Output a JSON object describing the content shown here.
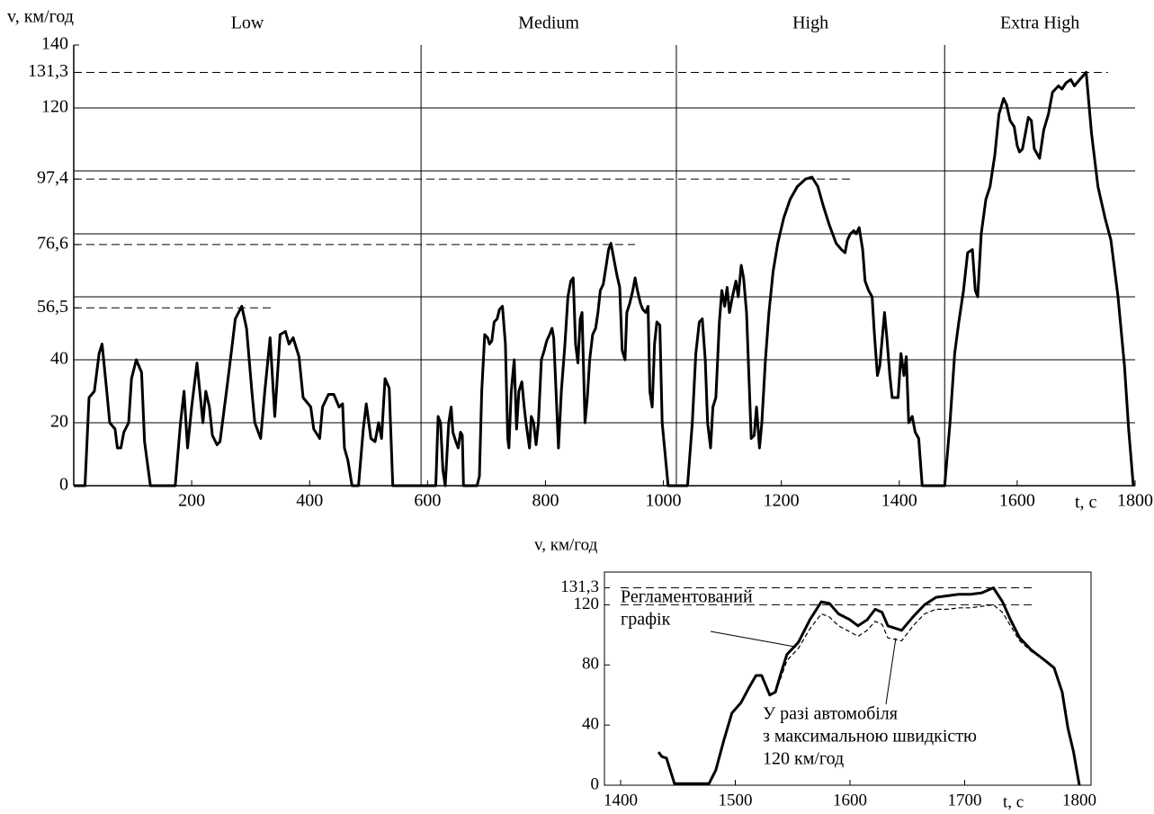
{
  "chart_data": [
    {
      "type": "line",
      "y_label": "v, км/год",
      "x_label": "t, c",
      "phases": [
        {
          "name": "Low",
          "start": 0,
          "end": 589
        },
        {
          "name": "Medium",
          "start": 589,
          "end": 1022
        },
        {
          "name": "High",
          "start": 1022,
          "end": 1477
        },
        {
          "name": "Extra High",
          "start": 1477,
          "end": 1800
        }
      ],
      "ref_lines": [
        {
          "value": 56.5,
          "to": 339
        },
        {
          "value": 76.6,
          "to": 952
        },
        {
          "value": 97.4,
          "to": 1318
        },
        {
          "value": 131.3,
          "to": 1754
        }
      ],
      "xlim": [
        0,
        1800
      ],
      "xticks": [
        200,
        400,
        600,
        800,
        1000,
        1200,
        1400,
        1600,
        1800
      ],
      "ylim": [
        0,
        140
      ],
      "yticks": [
        0,
        20,
        40,
        {
          "value": 56.5,
          "label": "56,5"
        },
        {
          "value": 76.6,
          "label": "76,6"
        },
        {
          "value": 97.4,
          "label": "97,4"
        },
        120,
        {
          "value": 131.3,
          "label": "131,3"
        },
        140
      ],
      "grid_y": [
        20,
        40,
        60,
        80,
        100,
        120
      ],
      "x": [
        0,
        19,
        26,
        35,
        43,
        48,
        56,
        61,
        70,
        74,
        80,
        85,
        93,
        98,
        106,
        115,
        120,
        130,
        172,
        181,
        187,
        193,
        200,
        209,
        219,
        224,
        230,
        235,
        243,
        248,
        259,
        267,
        274,
        285,
        293,
        302,
        307,
        317,
        324,
        333,
        341,
        350,
        359,
        365,
        372,
        382,
        389,
        402,
        407,
        417,
        422,
        432,
        441,
        450,
        456,
        459,
        465,
        472,
        483,
        491,
        496,
        504,
        511,
        517,
        522,
        528,
        535,
        541,
        589,
        608,
        614,
        618,
        622,
        626,
        630,
        636,
        640,
        643,
        648,
        652,
        656,
        659,
        661,
        684,
        688,
        692,
        697,
        702,
        705,
        709,
        713,
        718,
        722,
        727,
        732,
        736,
        738,
        742,
        747,
        751,
        755,
        760,
        764,
        767,
        773,
        776,
        780,
        784,
        788,
        793,
        798,
        802,
        807,
        811,
        814,
        818,
        822,
        827,
        833,
        838,
        843,
        847,
        851,
        855,
        859,
        862,
        867,
        871,
        875,
        880,
        885,
        889,
        893,
        898,
        903,
        907,
        911,
        916,
        921,
        926,
        930,
        935,
        938,
        943,
        948,
        952,
        956,
        961,
        965,
        970,
        974,
        977,
        981,
        985,
        989,
        994,
        998,
        1003,
        1008,
        1022,
        1041,
        1049,
        1055,
        1061,
        1066,
        1071,
        1075,
        1080,
        1084,
        1089,
        1095,
        1099,
        1104,
        1108,
        1112,
        1117,
        1123,
        1127,
        1132,
        1136,
        1141,
        1145,
        1149,
        1154,
        1158,
        1163,
        1167,
        1173,
        1179,
        1186,
        1194,
        1204,
        1215,
        1227,
        1241,
        1252,
        1262,
        1271,
        1281,
        1293,
        1302,
        1308,
        1312,
        1317,
        1323,
        1327,
        1332,
        1338,
        1342,
        1348,
        1354,
        1358,
        1363,
        1367,
        1375,
        1379,
        1384,
        1388,
        1393,
        1398,
        1403,
        1408,
        1412,
        1416,
        1422,
        1427,
        1433,
        1439,
        1477,
        1486,
        1494,
        1501,
        1509,
        1516,
        1524,
        1529,
        1533,
        1539,
        1547,
        1554,
        1562,
        1569,
        1577,
        1582,
        1588,
        1595,
        1600,
        1604,
        1609,
        1615,
        1619,
        1624,
        1629,
        1638,
        1645,
        1653,
        1660,
        1670,
        1676,
        1683,
        1691,
        1697,
        1706,
        1717,
        1726,
        1737,
        1749,
        1759,
        1771,
        1782,
        1789,
        1797
      ],
      "series": [
        {
          "color": "#000000",
          "values": [
            0,
            0,
            28,
            30,
            42,
            45,
            30,
            20,
            18,
            12,
            12,
            17,
            20,
            34,
            40,
            36,
            14,
            0,
            0,
            20,
            30,
            12,
            25,
            39,
            20,
            30,
            25,
            16,
            13,
            14,
            30,
            42,
            53,
            57,
            50,
            30,
            20,
            15,
            30,
            47,
            22,
            48,
            49,
            45,
            47,
            41,
            28,
            25,
            18,
            15,
            25,
            29,
            29,
            25,
            26,
            12,
            8,
            0,
            0,
            18,
            26,
            15,
            14,
            20,
            15,
            34,
            31,
            0,
            0,
            0,
            0,
            22,
            20,
            5,
            0,
            20,
            25,
            17,
            14,
            12,
            17,
            16,
            0,
            0,
            3,
            30,
            48,
            47,
            45,
            46,
            52,
            53,
            56,
            57,
            45,
            15,
            12,
            30,
            40,
            18,
            30,
            33,
            25,
            20,
            12,
            22,
            20,
            13,
            20,
            40,
            43,
            46,
            48,
            50,
            47,
            30,
            12,
            30,
            45,
            60,
            65,
            66,
            45,
            39,
            53,
            55,
            20,
            28,
            40,
            48,
            50,
            55,
            62,
            64,
            70,
            75,
            77,
            72,
            67,
            63,
            43,
            40,
            55,
            58,
            62,
            66,
            62,
            58,
            56,
            55,
            57,
            30,
            25,
            45,
            52,
            51,
            20,
            10,
            0,
            0,
            0,
            20,
            42,
            52,
            53,
            40,
            20,
            12,
            25,
            28,
            52,
            62,
            57,
            63,
            55,
            60,
            65,
            60,
            70,
            66,
            55,
            35,
            15,
            16,
            25,
            12,
            20,
            40,
            55,
            68,
            77,
            85,
            91,
            95,
            97.4,
            98,
            95,
            89,
            83,
            77,
            75,
            74,
            78,
            80,
            81,
            80,
            82,
            75,
            65,
            62,
            60,
            48,
            35,
            38,
            55,
            47,
            35,
            28,
            28,
            28,
            42,
            35,
            41,
            20,
            22,
            17,
            15,
            0,
            0,
            20,
            42,
            52,
            62,
            74,
            75,
            62,
            60,
            80,
            91,
            95,
            105,
            118,
            123,
            121,
            116,
            114,
            108,
            106,
            107,
            113,
            117,
            116,
            107,
            104,
            113,
            118,
            125,
            127,
            126,
            128,
            129,
            127,
            129,
            131.3,
            112,
            95,
            85,
            78,
            60,
            38,
            18,
            0
          ]
        }
      ]
    },
    {
      "type": "line",
      "y_label": "v, км/год",
      "x_label": "t, c",
      "ref_lines": [
        {
          "value": 131.3,
          "to": 1760
        },
        {
          "value": 120,
          "to": 1760
        }
      ],
      "annotations": [
        {
          "lines": [
            "Регламентований",
            "графік"
          ]
        },
        {
          "lines": [
            "У разі автомобіля",
            "з максимальною швидкістю",
            "120 км/год"
          ]
        }
      ],
      "xlim": [
        1400,
        1800
      ],
      "xticks": [
        1400,
        1500,
        1600,
        1700,
        1800
      ],
      "ylim": [
        0,
        140
      ],
      "yticks": [
        0,
        40,
        80,
        120,
        {
          "value": 131.3,
          "label": "131,3"
        }
      ],
      "x": [
        1433,
        1436,
        1440,
        1447,
        1477,
        1483,
        1490,
        1497,
        1505,
        1512,
        1518,
        1523,
        1530,
        1535,
        1540,
        1545,
        1555,
        1565,
        1575,
        1582,
        1590,
        1600,
        1607,
        1615,
        1622,
        1628,
        1633,
        1645,
        1655,
        1665,
        1675,
        1685,
        1695,
        1705,
        1715,
        1725,
        1733,
        1740,
        1748,
        1758,
        1770,
        1778,
        1785,
        1790,
        1795,
        1800
      ],
      "series": [
        {
          "color": "#000000",
          "style": "solid",
          "values": [
            22,
            19,
            18,
            1,
            1,
            10,
            30,
            48,
            55,
            65,
            73,
            73,
            60,
            62,
            75,
            87,
            95,
            110,
            122,
            121,
            114,
            110,
            106,
            110,
            117,
            115,
            106,
            103,
            112,
            120,
            125,
            126,
            127,
            127,
            128,
            131.3,
            122,
            110,
            98,
            90,
            83,
            78,
            62,
            38,
            22,
            0
          ]
        },
        {
          "color": "#000000",
          "style": "dashed",
          "values": [
            22,
            19,
            18,
            1,
            1,
            10,
            30,
            48,
            55,
            65,
            73,
            73,
            60,
            62,
            72,
            83,
            91,
            104,
            114,
            112,
            106,
            102,
            99,
            103,
            109,
            107,
            98,
            96,
            106,
            114,
            117,
            117,
            118,
            118,
            119,
            120,
            115,
            106,
            96,
            89,
            83,
            78,
            62,
            38,
            22,
            0
          ]
        }
      ]
    }
  ]
}
